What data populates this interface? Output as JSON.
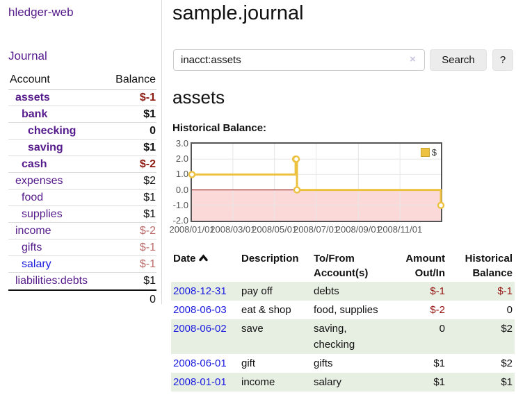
{
  "colors": {
    "purple": "#551a8b",
    "blue": "#1b1be0",
    "negStrong": "#8d1a10",
    "negSoft": "#bb6a6a",
    "negTable": "#96130f",
    "rowGreen": "#e7efe3",
    "gold": "#edc240",
    "goldBorder": "#c9a52e",
    "pink": "#fcd9d9",
    "zeroLine": "#8b0000",
    "grid": "#e6e6e6",
    "axis": "#545454"
  },
  "sidebar": {
    "brand": "hledger-web",
    "nav_journal": "Journal",
    "table": {
      "headers": {
        "account": "Account",
        "balance": "Balance"
      },
      "accounts": [
        {
          "name": "assets",
          "level": 1,
          "bold": true,
          "balance": "$-1",
          "neg": "strong"
        },
        {
          "name": "bank",
          "level": 2,
          "bold": true,
          "balance": "$1"
        },
        {
          "name": "checking",
          "level": 3,
          "bold": true,
          "balance": "0"
        },
        {
          "name": "saving",
          "level": 3,
          "bold": true,
          "balance": "$1"
        },
        {
          "name": "cash",
          "level": 2,
          "bold": true,
          "balance": "$-2",
          "neg": "strong"
        },
        {
          "name": "expenses",
          "level": 1,
          "bold": false,
          "balance": "$2"
        },
        {
          "name": "food",
          "level": 2,
          "bold": false,
          "balance": "$1"
        },
        {
          "name": "supplies",
          "level": 2,
          "bold": false,
          "balance": "$1"
        },
        {
          "name": "income",
          "level": 1,
          "bold": false,
          "balance": "$-2",
          "neg": "soft"
        },
        {
          "name": "gifts",
          "level": 2,
          "bold": false,
          "balance": "$-1",
          "neg": "soft"
        },
        {
          "name": "salary",
          "level": 2,
          "bold": false,
          "balance": "$-1",
          "neg": "soft",
          "link": "blue"
        },
        {
          "name": "liabilities:debts",
          "level": 1,
          "bold": false,
          "balance": "$1"
        }
      ],
      "total": "0"
    }
  },
  "main": {
    "title": "sample.journal",
    "search": {
      "value": "inacct:assets",
      "clear_icon": "×",
      "search_button": "Search",
      "help_button": "?"
    },
    "account_heading": "assets",
    "chart_label": "Historical Balance:"
  },
  "chart_data": {
    "type": "line",
    "style": "step",
    "title": "Historical Balance",
    "legend_position": "top-right",
    "grid": true,
    "x_range": [
      "2008-01-01",
      "2008-12-31"
    ],
    "y_range": [
      -2,
      3
    ],
    "y_ticks": [
      {
        "value": 3,
        "label": "3.0"
      },
      {
        "value": 2,
        "label": "2.0"
      },
      {
        "value": 1,
        "label": "1.0"
      },
      {
        "value": 0,
        "label": "0.0"
      },
      {
        "value": -1,
        "label": "-1.0"
      },
      {
        "value": -2,
        "label": "-2.0"
      }
    ],
    "x_ticks": [
      {
        "date": "2008-01-01",
        "label": "2008/01/01"
      },
      {
        "date": "2008-03-01",
        "label": "2008/03/01"
      },
      {
        "date": "2008-05-01",
        "label": "2008/05/01"
      },
      {
        "date": "2008-07-01",
        "label": "2008/07/01"
      },
      {
        "date": "2008-09-01",
        "label": "2008/09/01"
      },
      {
        "date": "2008-11-01",
        "label": "2008/11/01"
      }
    ],
    "series": [
      {
        "name": "$",
        "points": [
          {
            "date": "2008-01-01",
            "value": 1
          },
          {
            "date": "2008-06-01",
            "value": 2
          },
          {
            "date": "2008-06-02",
            "value": 2
          },
          {
            "date": "2008-06-03",
            "value": 0
          },
          {
            "date": "2008-12-31",
            "value": -1
          }
        ]
      }
    ]
  },
  "table": {
    "headers": {
      "date": "Date",
      "description": "Description",
      "accounts": "To/From Account(s)",
      "amount": "Amount Out/In",
      "balance": "Historical Balance"
    },
    "rows": [
      {
        "date": "2008-12-31",
        "description": "pay off",
        "accounts": "debts",
        "amount": "$-1",
        "amount_neg": true,
        "balance": "$-1",
        "balance_neg": true,
        "green": true
      },
      {
        "date": "2008-06-03",
        "description": "eat & shop",
        "accounts": "food, supplies",
        "amount": "$-2",
        "amount_neg": true,
        "balance": "0",
        "balance_neg": false,
        "green": false
      },
      {
        "date": "2008-06-02",
        "description": "save",
        "accounts": "saving, checking",
        "amount": "0",
        "amount_neg": false,
        "balance": "$2",
        "balance_neg": false,
        "green": true
      },
      {
        "date": "2008-06-01",
        "description": "gift",
        "accounts": "gifts",
        "amount": "$1",
        "amount_neg": false,
        "balance": "$2",
        "balance_neg": false,
        "green": false
      },
      {
        "date": "2008-01-01",
        "description": "income",
        "accounts": "salary",
        "amount": "$1",
        "amount_neg": false,
        "balance": "$1",
        "balance_neg": false,
        "green": true
      }
    ]
  }
}
